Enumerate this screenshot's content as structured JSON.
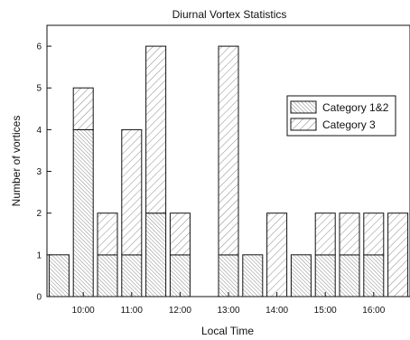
{
  "chart_data": {
    "type": "bar",
    "title": "Diurnal Vortex Statistics",
    "xlabel": "Local Time",
    "ylabel": "Number of vortices",
    "x_ticks": [
      "10:00",
      "11:00",
      "12:00",
      "13:00",
      "14:00",
      "15:00",
      "16:00"
    ],
    "y_ticks": [
      "0",
      "1",
      "2",
      "3",
      "4",
      "5",
      "6"
    ],
    "ylim": [
      0,
      6.5
    ],
    "x_tick_values": [
      10,
      11,
      12,
      13,
      14,
      15,
      16
    ],
    "xlim": [
      9.25,
      16.75
    ],
    "stacked": true,
    "x": [
      9.5,
      10.0,
      10.5,
      11.0,
      11.5,
      12.0,
      12.5,
      13.0,
      13.5,
      14.0,
      14.5,
      15.0,
      15.5,
      16.0,
      16.5
    ],
    "series": [
      {
        "name": "Category 1&2",
        "values": [
          1,
          4,
          1,
          1,
          2,
          1,
          0,
          1,
          1,
          0,
          1,
          1,
          1,
          1,
          0
        ]
      },
      {
        "name": "Category 3",
        "values": [
          0,
          1,
          1,
          3,
          4,
          1,
          0,
          5,
          0,
          2,
          0,
          1,
          1,
          1,
          2
        ]
      }
    ],
    "legend_position": "top-right",
    "grid": false,
    "colors": {
      "axis": "#111111",
      "bar_fill": "#ffffff",
      "hatch": "#8a8a8a"
    }
  }
}
